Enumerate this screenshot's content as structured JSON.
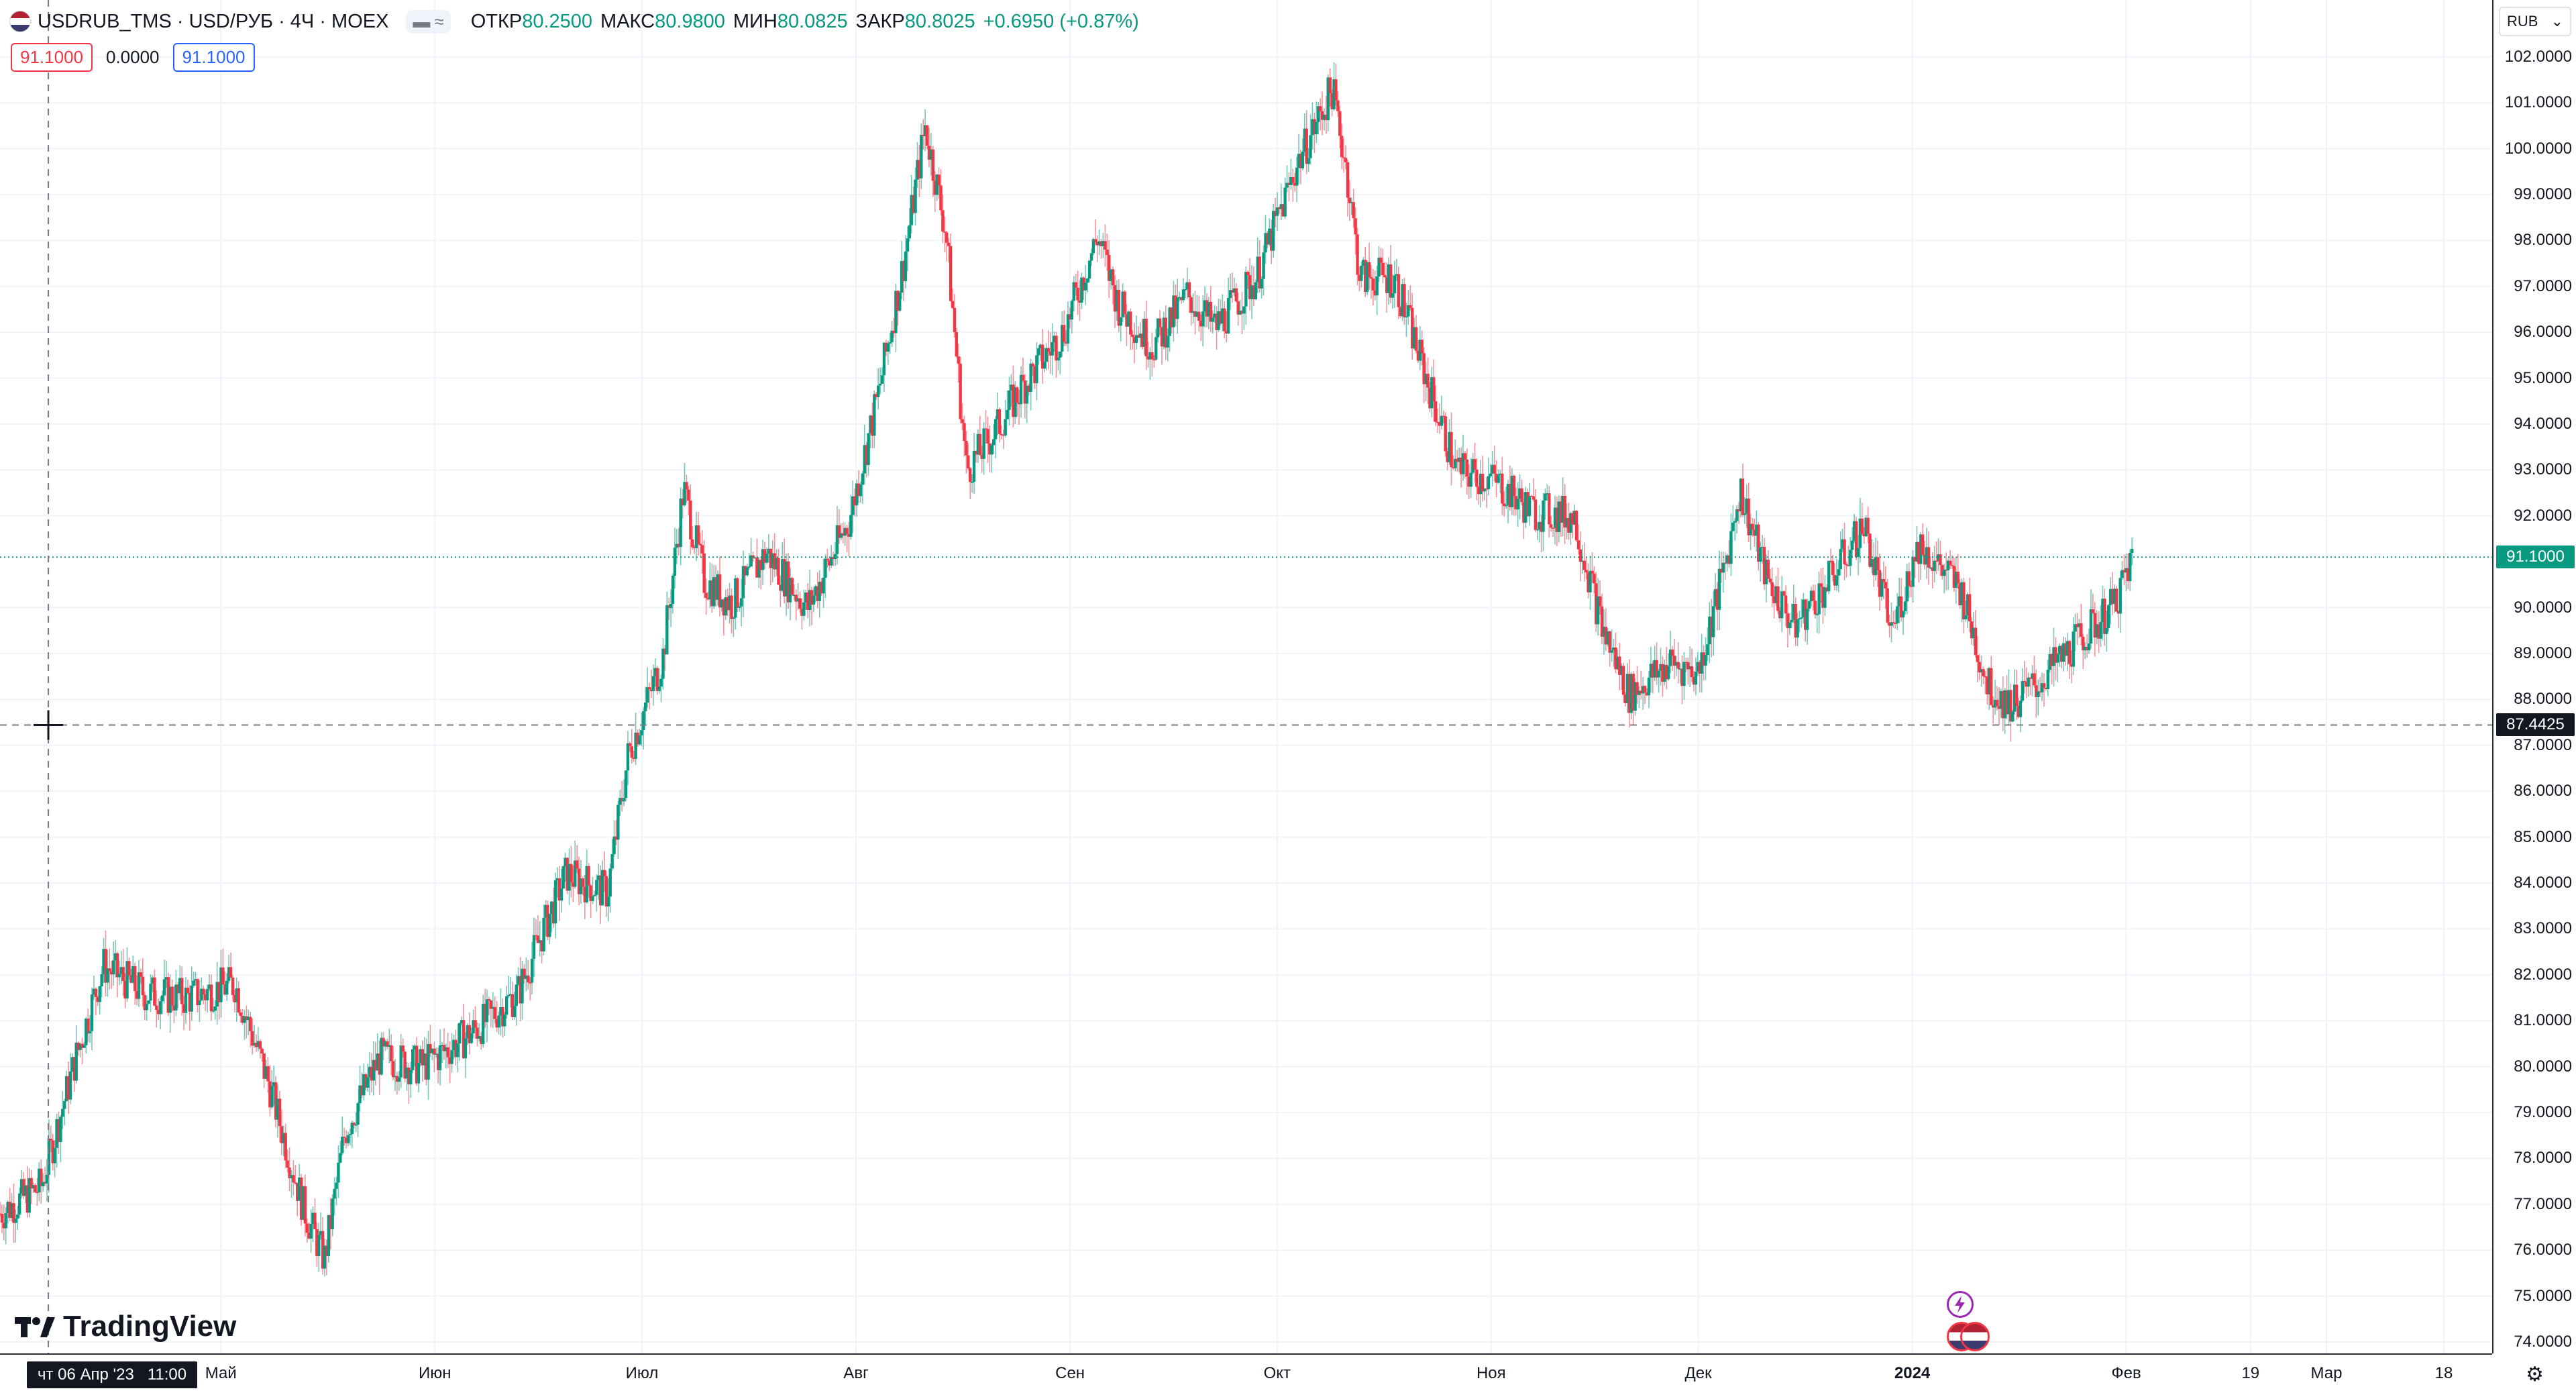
{
  "legend": {
    "symbol": "USDRUB_TMS · USD/РУБ · 4Ч · MOEX",
    "open_label": "ОТКР",
    "open_value": "80.2500",
    "high_label": "МАКС",
    "high_value": "80.9800",
    "low_label": "МИН",
    "low_value": "80.0825",
    "close_label": "ЗАКР",
    "close_value": "80.8025",
    "change": "+0.6950 (+0.87%)",
    "pill_a": "▬",
    "pill_b": "≈"
  },
  "inputs": {
    "a": "91.1000",
    "b": "0.0000",
    "c": "91.1000"
  },
  "currency": {
    "label": "RUB",
    "icon": "chevron-down-icon"
  },
  "brand": {
    "logo_text": "TradingView",
    "icon": "tradingview-logo-icon"
  },
  "crosshair": {
    "price": "87.4425",
    "date": "чт 06 Апр '23",
    "time": "11:00"
  },
  "last_price": {
    "label": "91.1000"
  },
  "colors": {
    "up": "#089981",
    "down": "#f23645",
    "grid": "#f0f3fa",
    "axis": "#2a2e39"
  },
  "price_ticks": [
    "102.0000",
    "101.0000",
    "100.0000",
    "99.0000",
    "98.0000",
    "97.0000",
    "96.0000",
    "95.0000",
    "94.0000",
    "93.0000",
    "92.0000",
    "90.0000",
    "89.0000",
    "88.0000",
    "87.0000",
    "86.0000",
    "85.0000",
    "84.0000",
    "83.0000",
    "82.0000",
    "81.0000",
    "80.0000",
    "79.0000",
    "78.0000",
    "77.0000",
    "76.0000",
    "75.0000",
    "74.0000"
  ],
  "time_ticks": [
    {
      "label": "Май",
      "bold": false
    },
    {
      "label": "Июн",
      "bold": false
    },
    {
      "label": "Июл",
      "bold": false
    },
    {
      "label": "Авг",
      "bold": false
    },
    {
      "label": "Сен",
      "bold": false
    },
    {
      "label": "Окт",
      "bold": false
    },
    {
      "label": "Ноя",
      "bold": false
    },
    {
      "label": "Дек",
      "bold": false
    },
    {
      "label": "2024",
      "bold": true
    },
    {
      "label": "Фев",
      "bold": false
    },
    {
      "label": "19",
      "bold": false
    },
    {
      "label": "Мар",
      "bold": false
    },
    {
      "label": "18",
      "bold": false
    }
  ],
  "chart_data": {
    "type": "candlestick",
    "interval": "4Ч",
    "ylim": [
      74,
      102.8
    ],
    "x_start": "2023-03-30",
    "x_end": "2024-03-25",
    "grid": true,
    "series": [
      {
        "date": "2023-03-30",
        "close": 76.8
      },
      {
        "date": "2023-04-05",
        "close": 77.4
      },
      {
        "date": "2023-04-10",
        "close": 80.2
      },
      {
        "date": "2023-04-14",
        "close": 82.2
      },
      {
        "date": "2023-04-20",
        "close": 81.6
      },
      {
        "date": "2023-04-26",
        "close": 81.5
      },
      {
        "date": "2023-05-03",
        "close": 81.8
      },
      {
        "date": "2023-05-08",
        "close": 79.6
      },
      {
        "date": "2023-05-13",
        "close": 76.9
      },
      {
        "date": "2023-05-16",
        "close": 75.8
      },
      {
        "date": "2023-05-19",
        "close": 78.6
      },
      {
        "date": "2023-05-24",
        "close": 80.2
      },
      {
        "date": "2023-05-30",
        "close": 80.0
      },
      {
        "date": "2023-06-06",
        "close": 80.7
      },
      {
        "date": "2023-06-13",
        "close": 81.6
      },
      {
        "date": "2023-06-20",
        "close": 84.2
      },
      {
        "date": "2023-06-26",
        "close": 83.8
      },
      {
        "date": "2023-06-29",
        "close": 86.8
      },
      {
        "date": "2023-07-04",
        "close": 88.9
      },
      {
        "date": "2023-07-07",
        "close": 92.6
      },
      {
        "date": "2023-07-10",
        "close": 90.6
      },
      {
        "date": "2023-07-14",
        "close": 90.1
      },
      {
        "date": "2023-07-19",
        "close": 91.2
      },
      {
        "date": "2023-07-25",
        "close": 90.0
      },
      {
        "date": "2023-07-31",
        "close": 91.9
      },
      {
        "date": "2023-08-04",
        "close": 94.5
      },
      {
        "date": "2023-08-08",
        "close": 97.6
      },
      {
        "date": "2023-08-11",
        "close": 100.5
      },
      {
        "date": "2023-08-14",
        "close": 98.2
      },
      {
        "date": "2023-08-17",
        "close": 93.0
      },
      {
        "date": "2023-08-21",
        "close": 93.8
      },
      {
        "date": "2023-08-25",
        "close": 94.8
      },
      {
        "date": "2023-08-31",
        "close": 96.0
      },
      {
        "date": "2023-09-05",
        "close": 98.1
      },
      {
        "date": "2023-09-08",
        "close": 96.6
      },
      {
        "date": "2023-09-13",
        "close": 95.7
      },
      {
        "date": "2023-09-18",
        "close": 96.8
      },
      {
        "date": "2023-09-22",
        "close": 96.1
      },
      {
        "date": "2023-09-28",
        "close": 97.2
      },
      {
        "date": "2023-10-04",
        "close": 99.7
      },
      {
        "date": "2023-10-09",
        "close": 101.3
      },
      {
        "date": "2023-10-11",
        "close": 99.6
      },
      {
        "date": "2023-10-13",
        "close": 97.2
      },
      {
        "date": "2023-10-18",
        "close": 97.2
      },
      {
        "date": "2023-10-23",
        "close": 94.8
      },
      {
        "date": "2023-10-27",
        "close": 93.0
      },
      {
        "date": "2023-11-01",
        "close": 92.8
      },
      {
        "date": "2023-11-07",
        "close": 92.1
      },
      {
        "date": "2023-11-13",
        "close": 92.0
      },
      {
        "date": "2023-11-17",
        "close": 89.6
      },
      {
        "date": "2023-11-21",
        "close": 88.1
      },
      {
        "date": "2023-11-27",
        "close": 88.8
      },
      {
        "date": "2023-12-01",
        "close": 88.6
      },
      {
        "date": "2023-12-05",
        "close": 91.0
      },
      {
        "date": "2023-12-07",
        "close": 92.6
      },
      {
        "date": "2023-12-11",
        "close": 90.6
      },
      {
        "date": "2023-12-15",
        "close": 89.6
      },
      {
        "date": "2023-12-20",
        "close": 90.6
      },
      {
        "date": "2023-12-25",
        "close": 91.8
      },
      {
        "date": "2023-12-29",
        "close": 89.5
      },
      {
        "date": "2024-01-02",
        "close": 91.4
      },
      {
        "date": "2024-01-08",
        "close": 90.4
      },
      {
        "date": "2024-01-12",
        "close": 88.3
      },
      {
        "date": "2024-01-15",
        "close": 87.9
      },
      {
        "date": "2024-01-19",
        "close": 88.3
      },
      {
        "date": "2024-01-24",
        "close": 89.1
      },
      {
        "date": "2024-01-30",
        "close": 90.0
      },
      {
        "date": "2024-02-02",
        "close": 91.1
      }
    ]
  }
}
